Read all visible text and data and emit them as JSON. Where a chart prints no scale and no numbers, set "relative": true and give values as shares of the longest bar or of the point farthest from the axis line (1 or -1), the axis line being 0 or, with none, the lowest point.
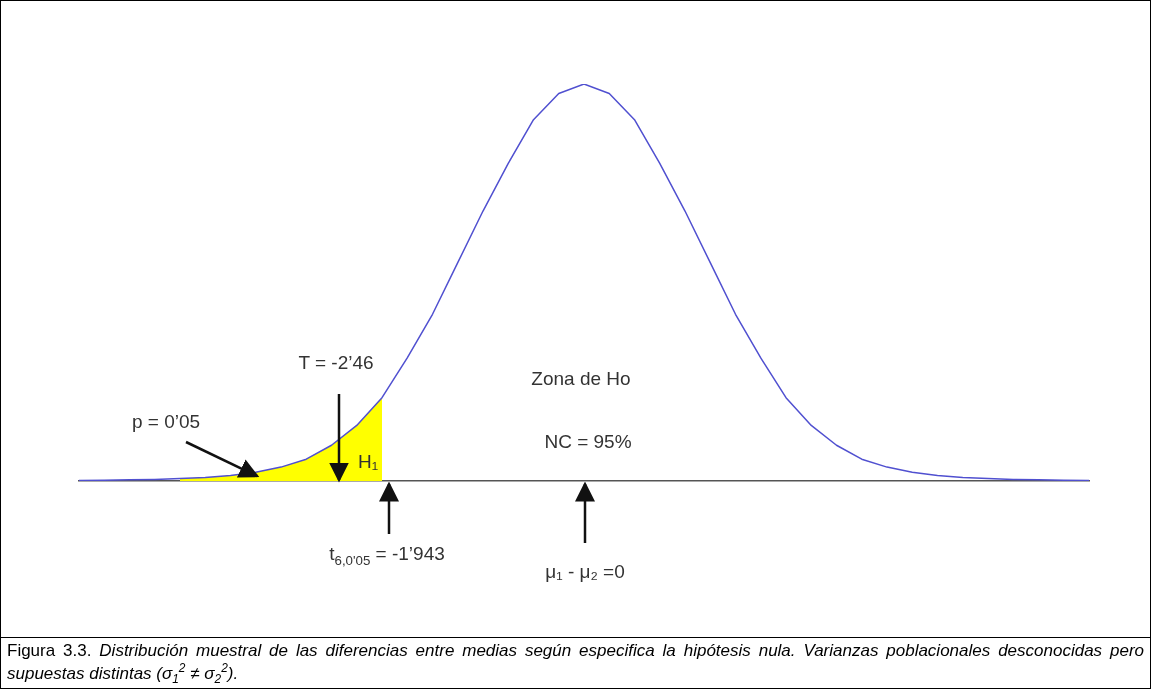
{
  "chart_data": {
    "type": "line",
    "relative": true,
    "grid": false,
    "legend": false,
    "marker": "none",
    "categories": [
      null,
      null,
      null,
      null,
      null,
      null,
      null,
      null,
      null,
      null,
      null,
      null,
      null,
      null,
      null,
      null,
      null,
      null,
      null,
      null,
      null,
      null,
      null,
      null,
      null,
      null,
      null,
      null,
      null,
      null,
      null,
      null,
      null,
      null,
      null,
      null,
      null,
      null,
      null,
      null,
      null
    ],
    "series": [
      {
        "type": "area",
        "color": "#ffff00",
        "values": [
          null,
          null,
          null,
          null,
          0.006,
          0.009,
          0.014,
          0.022,
          0.035,
          0.055,
          0.09,
          0.14,
          0.21,
          null,
          null,
          null,
          null,
          null,
          null,
          null,
          null,
          null,
          null,
          null,
          null,
          null,
          null,
          null,
          null,
          null,
          null,
          null,
          null,
          null,
          null,
          null,
          null,
          null,
          null,
          null,
          null
        ]
      },
      {
        "color": "#5050d0",
        "values": [
          0.001,
          0.002,
          0.003,
          0.004,
          0.006,
          0.009,
          0.014,
          0.022,
          0.035,
          0.055,
          0.09,
          0.14,
          0.21,
          0.31,
          0.42,
          0.55,
          0.68,
          0.8,
          0.91,
          0.976,
          1,
          0.976,
          0.91,
          0.8,
          0.68,
          0.55,
          0.42,
          0.31,
          0.21,
          0.14,
          0.09,
          0.055,
          0.035,
          0.022,
          0.014,
          0.009,
          0.006,
          0.004,
          0.003,
          0.002,
          0.001
        ]
      }
    ],
    "annotations": [
      "p = 0’05",
      "T = -2’46",
      "H₁",
      "t$_{6,0'05}$ = -1’943",
      "Zona de Ho",
      "NC = 95%",
      "μ₁ - μ₂ =0",
      "Figura 3.3.",
      "Distribución muestral de las diferencias entre medias según especifica la hipótesis nula. Varianzas poblacionales desconocidas pero supuestas distintas (σ$_{1}$$^{2}$ ≠ σ$_{2}$$^{2}$)."
    ]
  }
}
